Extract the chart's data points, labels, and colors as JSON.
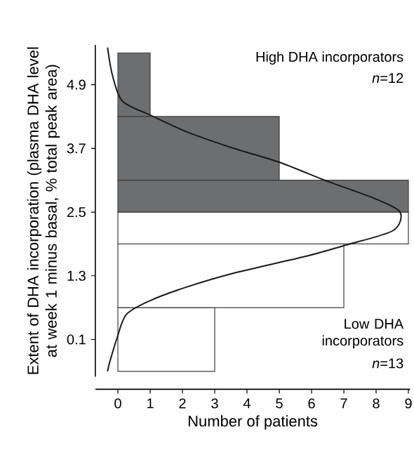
{
  "chart_data": {
    "type": "histogram",
    "orientation": "horizontal",
    "xlabel": "Number of patients",
    "ylabel": "Extent of DHA incorporation (plasma DHA level at week 1 minus basal, % total peak area)",
    "xlim": [
      -0.7,
      9.05
    ],
    "xticks": [
      0,
      1,
      2,
      3,
      4,
      5,
      6,
      7,
      8,
      9
    ],
    "ylim": [
      -0.6,
      5.65
    ],
    "yticks": [
      0.1,
      1.3,
      2.5,
      3.7,
      4.9
    ],
    "series": [
      {
        "bins": [
          -0.5,
          0.7,
          1.9,
          2.5,
          3.1,
          4.3,
          5.5
        ],
        "values": [
          3,
          7,
          9,
          9,
          5,
          1
        ],
        "colors": [
          "#ffffff",
          "#ffffff",
          "#ffffff",
          "#6d6e70",
          "#6d6e70",
          "#6d6e70"
        ]
      },
      {
        "type": "line",
        "color": "#1a1a1a",
        "x": [
          -0.5,
          -0.32,
          0.12,
          0.57,
          0.83,
          1.09,
          1.35,
          1.66,
          1.88,
          2.15,
          2.5,
          2.76,
          3.08,
          3.44,
          3.7,
          4.01,
          4.33,
          4.59,
          5.08,
          5.6
        ],
        "values": [
          -0.32,
          -0.25,
          -0.03,
          0.26,
          0.99,
          2.14,
          3.59,
          5.77,
          7.07,
          8.52,
          8.74,
          7.94,
          6.49,
          5.0,
          3.59,
          2.14,
          0.99,
          0.14,
          -0.17,
          -0.32
        ]
      }
    ],
    "annotations": [
      "High DHA incorporators",
      "*n*=12",
      "Low DHA incorporators",
      "*n*=13"
    ]
  }
}
